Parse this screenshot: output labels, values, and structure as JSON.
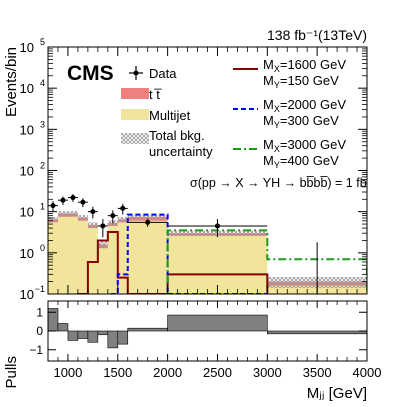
{
  "chart_data": {
    "type": "bar",
    "header_right": "138 fb⁻¹(13TeV)",
    "cms_label": "CMS",
    "ylabel": "Events/bin",
    "xlabel": "Mⱼⱼ [GeV]",
    "pulls_label": "Pulls",
    "y_scale": "log",
    "ylim": [
      0.1,
      100000
    ],
    "xlim": [
      800,
      4000
    ],
    "yticks": [
      {
        "value": 0.1,
        "base": "10",
        "exp": "−1"
      },
      {
        "value": 1,
        "base": "10",
        "exp": "0"
      },
      {
        "value": 10,
        "base": "10",
        "exp": "1"
      },
      {
        "value": 100,
        "base": "10",
        "exp": "2"
      },
      {
        "value": 1000,
        "base": "10",
        "exp": "3"
      },
      {
        "value": 10000,
        "base": "10",
        "exp": "4"
      },
      {
        "value": 100000,
        "base": "10",
        "exp": "5"
      }
    ],
    "xticks": [
      1000,
      1500,
      2000,
      2500,
      3000,
      3500,
      4000
    ],
    "bin_edges": [
      800,
      900,
      1000,
      1100,
      1200,
      1300,
      1400,
      1500,
      1600,
      2000,
      3000,
      4000
    ],
    "multijet": [
      5.5,
      7.5,
      7.5,
      6.0,
      4.0,
      1.3,
      4.5,
      5.5,
      6.0,
      2.6,
      0.16
    ],
    "ttbar": [
      1.0,
      1.5,
      1.5,
      1.2,
      0.8,
      0.3,
      0.8,
      1.0,
      1.5,
      0.4,
      0.04
    ],
    "total_bkg": [
      6.5,
      9.0,
      9.0,
      7.2,
      4.8,
      1.6,
      5.3,
      6.5,
      7.5,
      3.0,
      0.2
    ],
    "bkg_unc": [
      0.15,
      0.15,
      0.15,
      0.15,
      0.15,
      0.2,
      0.15,
      0.15,
      0.12,
      0.15,
      0.3
    ],
    "data": {
      "x": [
        850,
        950,
        1050,
        1150,
        1250,
        1350,
        1450,
        1550,
        1800,
        2500,
        3500
      ],
      "y": [
        14,
        19,
        22,
        17,
        10,
        4.5,
        8,
        12,
        5.5,
        4.5,
        0
      ],
      "yerr": [
        4,
        4.4,
        4.7,
        4.1,
        3.2,
        2.1,
        2.8,
        3.5,
        1.2,
        2.1,
        1.8
      ],
      "xerr": [
        50,
        50,
        50,
        50,
        50,
        50,
        50,
        50,
        200,
        500,
        500
      ]
    },
    "signals": [
      {
        "name": "Mₓ=1600 GeV|Mᵧ=150 GeV",
        "mx_label": "M",
        "mx_sub": "X",
        "mx_val": "=1600 GeV",
        "my_label": "M",
        "my_sub": "Y",
        "my_val": "=150 GeV",
        "color": "#8b0000",
        "style": "solid",
        "edges": [
          1100,
          1200,
          1300,
          1400,
          1500,
          1600,
          2000,
          3000
        ],
        "values": [
          0.1,
          0.6,
          2.0,
          3.2,
          0.25,
          0.1,
          0.3,
          0.1
        ]
      },
      {
        "name": "Mₓ=2000 GeV|Mᵧ=300 GeV",
        "mx_label": "M",
        "mx_sub": "X",
        "mx_val": "=2000 GeV",
        "my_label": "M",
        "my_sub": "Y",
        "my_val": "=300 GeV",
        "color": "#0000ff",
        "style": "dashed",
        "edges": [
          1400,
          1500,
          1600,
          2000,
          3000
        ],
        "values": [
          0.1,
          0.3,
          8.5,
          0.1
        ]
      },
      {
        "name": "Mₓ=3000 GeV|Mᵧ=400 GeV",
        "mx_label": "M",
        "mx_sub": "X",
        "mx_val": "=3000 GeV",
        "my_label": "M",
        "my_sub": "Y",
        "my_val": "=400 GeV",
        "color": "#1a9e1a",
        "style": "dashdot",
        "edges": [
          2000,
          3000,
          4000
        ],
        "values": [
          3.5,
          0.7
        ]
      }
    ],
    "legend": {
      "data": "Data",
      "ttbar": "t t̅",
      "multijet": "Multijet",
      "unc_line1": "Total bkg.",
      "unc_line2": "uncertainty",
      "placement": "top"
    },
    "annotation": "σ(pp → X → YH → bb̅bb̅) = 1 fb",
    "pulls": {
      "values": [
        1.2,
        0.4,
        -0.5,
        -0.4,
        -0.6,
        -0.2,
        -0.9,
        -0.7,
        0.15,
        0.85,
        -0.15
      ],
      "ylim": [
        -1.6,
        1.6
      ],
      "yticks": [
        -1,
        0,
        1
      ]
    },
    "colors": {
      "multijet": "#f0e59a",
      "ttbar": "#ef8080",
      "data": "#000000",
      "pull_fill": "#808080"
    }
  }
}
